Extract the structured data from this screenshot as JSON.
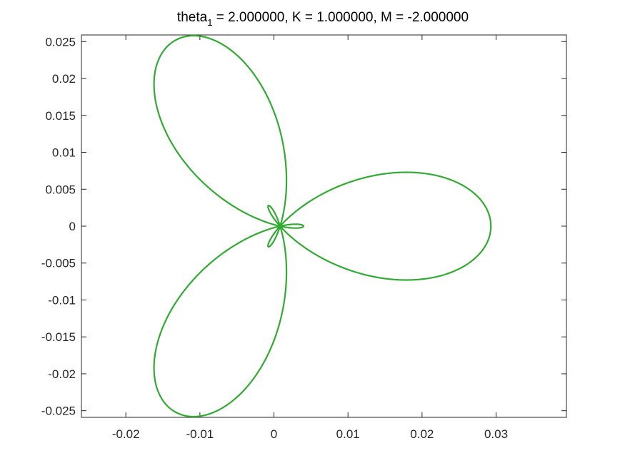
{
  "chart_data": {
    "type": "line",
    "title_main": "theta",
    "title_sub": "1",
    "title_rest": " = 2.000000, K = 1.000000, M = -2.000000",
    "xlabel": "",
    "ylabel": "",
    "xlim": [
      -0.026,
      0.0395
    ],
    "ylim": [
      -0.0259,
      0.0259
    ],
    "x_ticks": [
      -0.02,
      -0.01,
      0,
      0.01,
      0.02,
      0.03
    ],
    "x_tick_labels": [
      "-0.02",
      "-0.01",
      "0",
      "0.01",
      "0.02",
      "0.03"
    ],
    "y_ticks": [
      0.025,
      0.02,
      0.015,
      0.01,
      0.005,
      0,
      -0.005,
      -0.01,
      -0.015,
      -0.02,
      -0.025
    ],
    "y_tick_labels": [
      "0.025",
      "0.02",
      "0.015",
      "0.01",
      "0.005",
      "0",
      "-0.005",
      "-0.01",
      "-0.015",
      "-0.02",
      "-0.025"
    ],
    "grid": false,
    "curve": {
      "kind": "three-lobed rose loop",
      "lobes": 3,
      "x_min": -0.0162,
      "x_max": 0.0293,
      "y_min": -0.0258,
      "y_max": 0.0258,
      "color": "#33aa33"
    }
  }
}
